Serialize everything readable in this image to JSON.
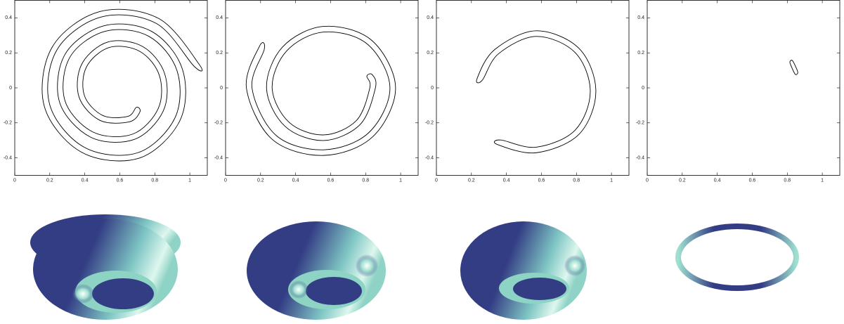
{
  "chart_data": [
    {
      "type": "line",
      "xlim": [
        0,
        1.1
      ],
      "ylim": [
        -0.5,
        0.5
      ],
      "xticks": [
        0,
        0.2,
        0.4,
        0.6,
        0.8,
        1
      ],
      "yticks": [
        -0.4,
        -0.2,
        0,
        0.2,
        0.4
      ],
      "series": [
        {
          "color": "#000000",
          "closed": true,
          "x": [
            1.055,
            0.823,
            0.486,
            0.214,
            0.169,
            0.382,
            0.71,
            0.943,
            0.958,
            0.781,
            0.508,
            0.287,
            0.256,
            0.432,
            0.682,
            0.848,
            0.857,
            0.731,
            0.532,
            0.383,
            0.367,
            0.487,
            0.655,
            0.715,
            0.695,
            0.646,
            0.503,
            0.398,
            0.41,
            0.541,
            0.715,
            0.826,
            0.82,
            0.674,
            0.448,
            0.287,
            0.315,
            0.516,
            0.765,
            0.927,
            0.915,
            0.702,
            0.398,
            0.2,
            0.241,
            0.494,
            0.807,
            1.024
          ],
          "y": [
            0.132,
            0.396,
            0.436,
            0.233,
            -0.106,
            -0.368,
            -0.402,
            -0.188,
            0.106,
            0.323,
            0.354,
            0.191,
            -0.082,
            -0.281,
            -0.295,
            -0.133,
            0.079,
            0.236,
            0.262,
            0.136,
            -0.052,
            -0.186,
            -0.194,
            -0.137,
            -0.111,
            -0.163,
            -0.158,
            -0.044,
            0.12,
            0.231,
            0.208,
            0.071,
            -0.117,
            -0.264,
            -0.253,
            -0.074,
            0.175,
            0.323,
            0.295,
            0.098,
            -0.172,
            -0.371,
            -0.34,
            -0.097,
            0.217,
            0.405,
            0.369,
            0.124
          ]
        }
      ]
    },
    {
      "type": "line",
      "xlim": [
        0,
        1.1
      ],
      "ylim": [
        -0.5,
        0.5
      ],
      "xticks": [
        0,
        0.2,
        0.4,
        0.6,
        0.8,
        1
      ],
      "yticks": [
        -0.4,
        -0.2,
        0,
        0.2,
        0.4
      ],
      "series": [
        {
          "color": "#000000",
          "closed": true,
          "x": [
            0.194,
            0.119,
            0.266,
            0.56,
            0.84,
            0.971,
            0.833,
            0.56,
            0.326,
            0.234,
            0.34,
            0.56,
            0.769,
            0.856,
            0.838,
            0.807,
            0.824,
            0.747,
            0.56,
            0.363,
            0.266,
            0.349,
            0.56,
            0.81,
            0.939,
            0.817,
            0.56,
            0.289,
            0.151,
            0.221
          ],
          "y": [
            0.238,
            0,
            -0.294,
            -0.386,
            -0.28,
            0,
            0.273,
            0.351,
            0.234,
            0,
            -0.22,
            -0.301,
            -0.209,
            0,
            0.075,
            0.066,
            0,
            -0.187,
            -0.269,
            -0.197,
            0,
            0.211,
            0.319,
            0.25,
            0,
            -0.257,
            -0.354,
            -0.272,
            0,
            0.22
          ]
        }
      ]
    },
    {
      "type": "line",
      "xlim": [
        0,
        1.1
      ],
      "ylim": [
        -0.5,
        0.5
      ],
      "xticks": [
        0,
        0.2,
        0.4,
        0.6,
        0.8,
        1
      ],
      "yticks": [
        -0.4,
        -0.2,
        0,
        0.2,
        0.4
      ],
      "series": [
        {
          "color": "#000000",
          "closed": true,
          "x": [
            0.232,
            0.332,
            0.57,
            0.815,
            0.911,
            0.815,
            0.57,
            0.349,
            0.368,
            0.57,
            0.792,
            0.879,
            0.792,
            0.57,
            0.355,
            0.263
          ],
          "y": [
            0.052,
            0.218,
            0.326,
            0.225,
            -0.02,
            -0.265,
            -0.371,
            -0.324,
            -0.298,
            -0.339,
            -0.242,
            -0.02,
            0.202,
            0.294,
            0.195,
            0.045
          ]
        }
      ]
    },
    {
      "type": "line",
      "xlim": [
        0,
        1.1
      ],
      "ylim": [
        -0.5,
        0.5
      ],
      "xticks": [
        0,
        0.2,
        0.4,
        0.6,
        0.8,
        1
      ],
      "yticks": [
        -0.4,
        -0.2,
        0,
        0.2,
        0.4
      ],
      "series": [
        {
          "color": "#000000",
          "closed": true,
          "x": [
            0.815,
            0.83,
            0.855,
            0.86,
            0.845,
            0.82
          ],
          "y": [
            0.15,
            0.155,
            0.105,
            0.085,
            0.078,
            0.13
          ]
        }
      ]
    }
  ]
}
